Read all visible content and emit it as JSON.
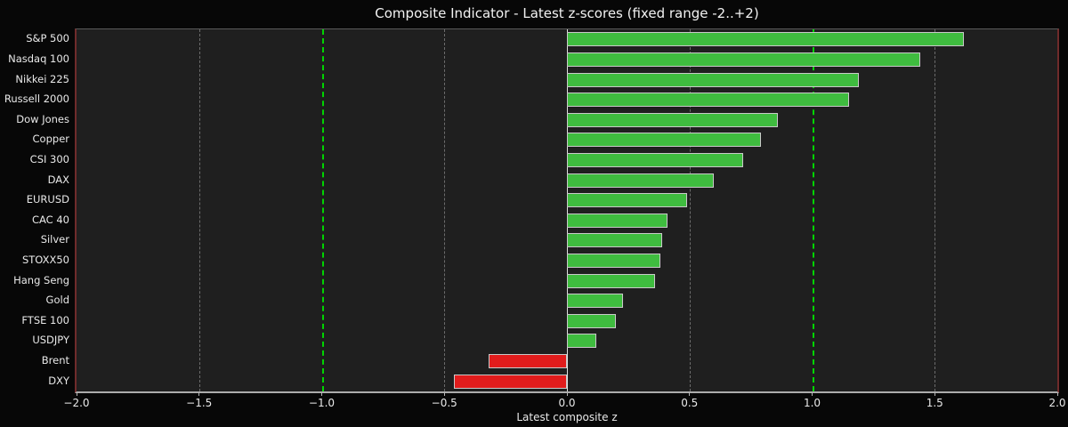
{
  "chart_data": {
    "type": "bar",
    "orientation": "horizontal",
    "title": "Composite Indicator - Latest z-scores (fixed range -2..+2)",
    "xlabel": "Latest composite z",
    "xlim": [
      -2.0,
      2.0
    ],
    "x_ticks": [
      -2.0,
      -1.5,
      -1.0,
      -0.5,
      0.0,
      0.5,
      1.0,
      1.5,
      2.0
    ],
    "x_tick_labels": [
      "−2.0",
      "−1.5",
      "−1.0",
      "−0.5",
      "0.0",
      "0.5",
      "1.0",
      "1.5",
      "2.0"
    ],
    "categories": [
      "S&P 500",
      "Nasdaq 100",
      "Nikkei 225",
      "Russell 2000",
      "Dow Jones",
      "Copper",
      "CSI 300",
      "DAX",
      "EURUSD",
      "CAC 40",
      "Silver",
      "STOXX50",
      "Hang Seng",
      "Gold",
      "FTSE 100",
      "USDJPY",
      "Brent",
      "DXY"
    ],
    "values": [
      1.62,
      1.44,
      1.19,
      1.15,
      0.86,
      0.79,
      0.72,
      0.6,
      0.49,
      0.41,
      0.39,
      0.38,
      0.36,
      0.23,
      0.2,
      0.12,
      -0.32,
      -0.46
    ],
    "grid": true,
    "legend": null,
    "colors": {
      "positive_bar": "#3fbc3f",
      "negative_bar": "#e11c1c",
      "bar_edge": "#c9c9c9",
      "threshold_line": "#00d400",
      "gridline": "#7a7a7a",
      "zero_line": "#e0e0e0",
      "plot_background": "#1f1f1f",
      "figure_background": "#070707",
      "side_spine": "#6f2b2b",
      "text": "#e9e9e9"
    },
    "gridline_values": [
      -1.5,
      -0.5,
      0.5,
      1.5
    ],
    "threshold_values": [
      -1.0,
      1.0
    ],
    "zero_line_value": 0.0
  }
}
